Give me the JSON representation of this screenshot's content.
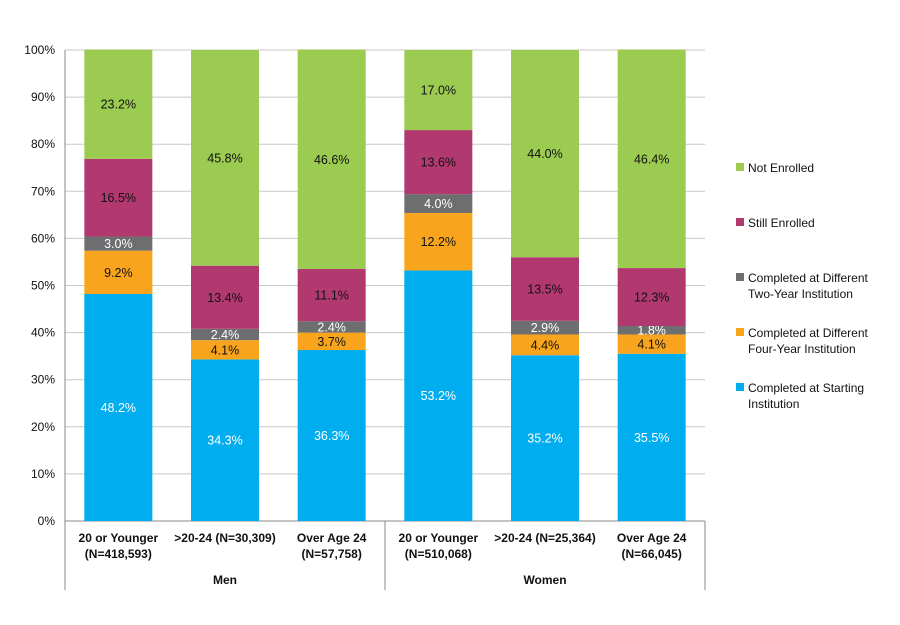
{
  "chart_data": {
    "type": "bar",
    "stacked": true,
    "title": "",
    "xlabel": "",
    "ylabel": "",
    "ylim": [
      0,
      100
    ],
    "y_ticks": [
      "0%",
      "10%",
      "20%",
      "30%",
      "40%",
      "50%",
      "60%",
      "70%",
      "80%",
      "90%",
      "100%"
    ],
    "grid": true,
    "legend_position": "right",
    "groups": [
      {
        "label": "Men",
        "categories": 3
      },
      {
        "label": "Women",
        "categories": 3
      }
    ],
    "categories": [
      [
        "20 or Younger",
        "(N=418,593)"
      ],
      [
        ">20-24 (N=30,309)",
        ""
      ],
      [
        "Over Age 24",
        "(N=57,758)"
      ],
      [
        "20 or Younger",
        "(N=510,068)"
      ],
      [
        ">20-24 (N=25,364)",
        ""
      ],
      [
        "Over Age 24",
        "(N=66,045)"
      ]
    ],
    "series": [
      {
        "name": "Completed at Starting Institution",
        "legend_lines": [
          "Completed at Starting",
          "Institution"
        ],
        "color": "#00AEEF",
        "label_color": "#ffffff",
        "values": [
          48.2,
          34.3,
          36.3,
          53.2,
          35.2,
          35.5
        ]
      },
      {
        "name": "Completed at Different Four-Year Institution",
        "legend_lines": [
          "Completed at Different",
          "Four-Year Institution"
        ],
        "color": "#F8A51D",
        "label_color": "#111111",
        "values": [
          9.2,
          4.1,
          3.7,
          12.2,
          4.4,
          4.1
        ]
      },
      {
        "name": "Completed at Different Two-Year Institution",
        "legend_lines": [
          "Completed at Different",
          "Two-Year Institution"
        ],
        "color": "#6D6E70",
        "label_color": "#ffffff",
        "values": [
          3.0,
          2.4,
          2.4,
          4.0,
          2.9,
          1.8
        ]
      },
      {
        "name": "Still Enrolled",
        "legend_lines": [
          "Still Enrolled"
        ],
        "color": "#B2396F",
        "label_color": "#111111",
        "values": [
          16.5,
          13.4,
          11.1,
          13.6,
          13.5,
          12.3
        ]
      },
      {
        "name": "Not Enrolled",
        "legend_lines": [
          "Not Enrolled"
        ],
        "color": "#9BCB50",
        "label_color": "#111111",
        "values": [
          23.2,
          45.8,
          46.6,
          17.0,
          44.0,
          46.4
        ]
      }
    ]
  }
}
